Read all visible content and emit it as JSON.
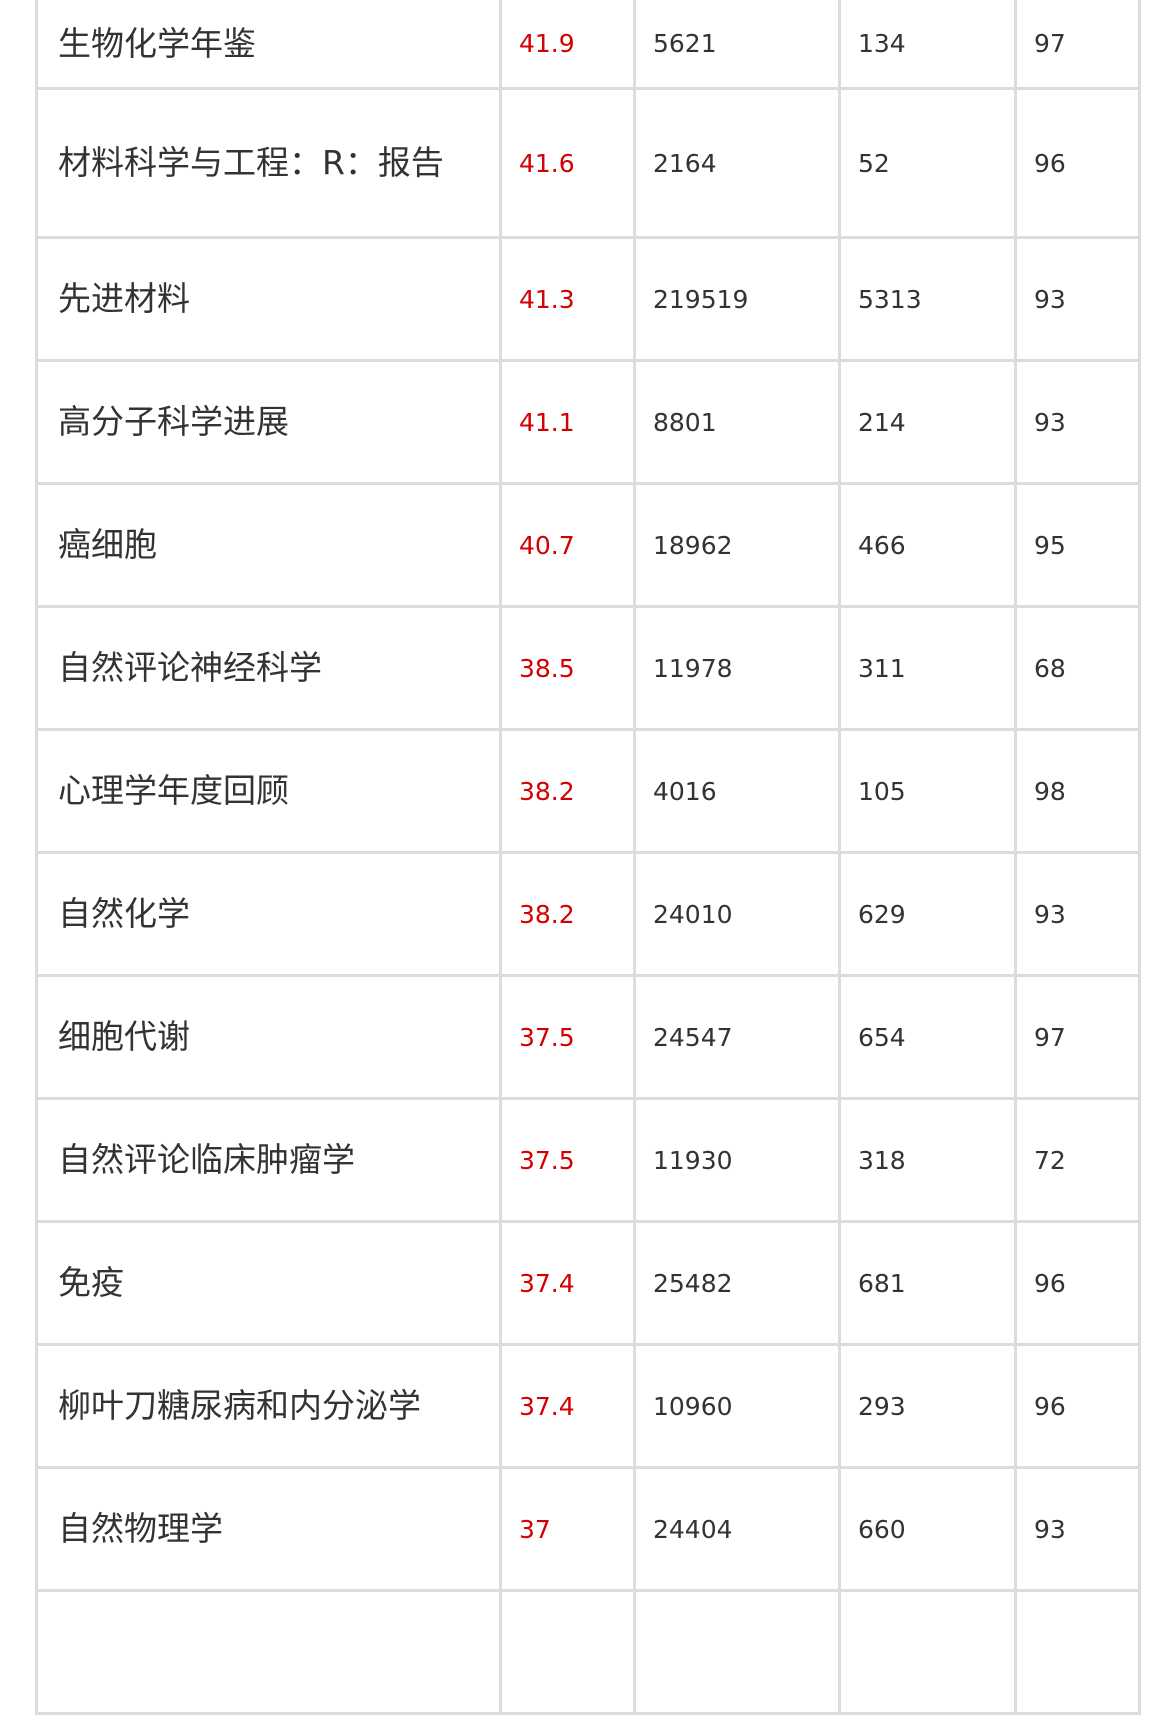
{
  "table": {
    "accent_color": "#d40000",
    "rows": [
      {
        "name": "生物化学年鉴",
        "score": "41.9",
        "c2": "5621",
        "c3": "134",
        "c4": "97"
      },
      {
        "name": "材料科学与工程：R：报告",
        "score": "41.6",
        "c2": "2164",
        "c3": "52",
        "c4": "96"
      },
      {
        "name": "先进材料",
        "score": "41.3",
        "c2": "219519",
        "c3": "5313",
        "c4": "93"
      },
      {
        "name": "高分子科学进展",
        "score": "41.1",
        "c2": "8801",
        "c3": "214",
        "c4": "93"
      },
      {
        "name": "癌细胞",
        "score": "40.7",
        "c2": "18962",
        "c3": "466",
        "c4": "95"
      },
      {
        "name": "自然评论神经科学",
        "score": "38.5",
        "c2": "11978",
        "c3": "311",
        "c4": "68"
      },
      {
        "name": "心理学年度回顾",
        "score": "38.2",
        "c2": "4016",
        "c3": "105",
        "c4": "98"
      },
      {
        "name": "自然化学",
        "score": "38.2",
        "c2": "24010",
        "c3": "629",
        "c4": "93"
      },
      {
        "name": "细胞代谢",
        "score": "37.5",
        "c2": "24547",
        "c3": "654",
        "c4": "97"
      },
      {
        "name": "自然评论临床肿瘤学",
        "score": "37.5",
        "c2": "11930",
        "c3": "318",
        "c4": "72"
      },
      {
        "name": "免疫",
        "score": "37.4",
        "c2": "25482",
        "c3": "681",
        "c4": "96"
      },
      {
        "name": "柳叶刀糖尿病和内分泌学",
        "score": "37.4",
        "c2": "10960",
        "c3": "293",
        "c4": "96"
      },
      {
        "name": "自然物理学",
        "score": "37",
        "c2": "24404",
        "c3": "660",
        "c4": "93"
      },
      {
        "name": "",
        "score": "",
        "c2": "",
        "c3": "",
        "c4": ""
      }
    ]
  }
}
